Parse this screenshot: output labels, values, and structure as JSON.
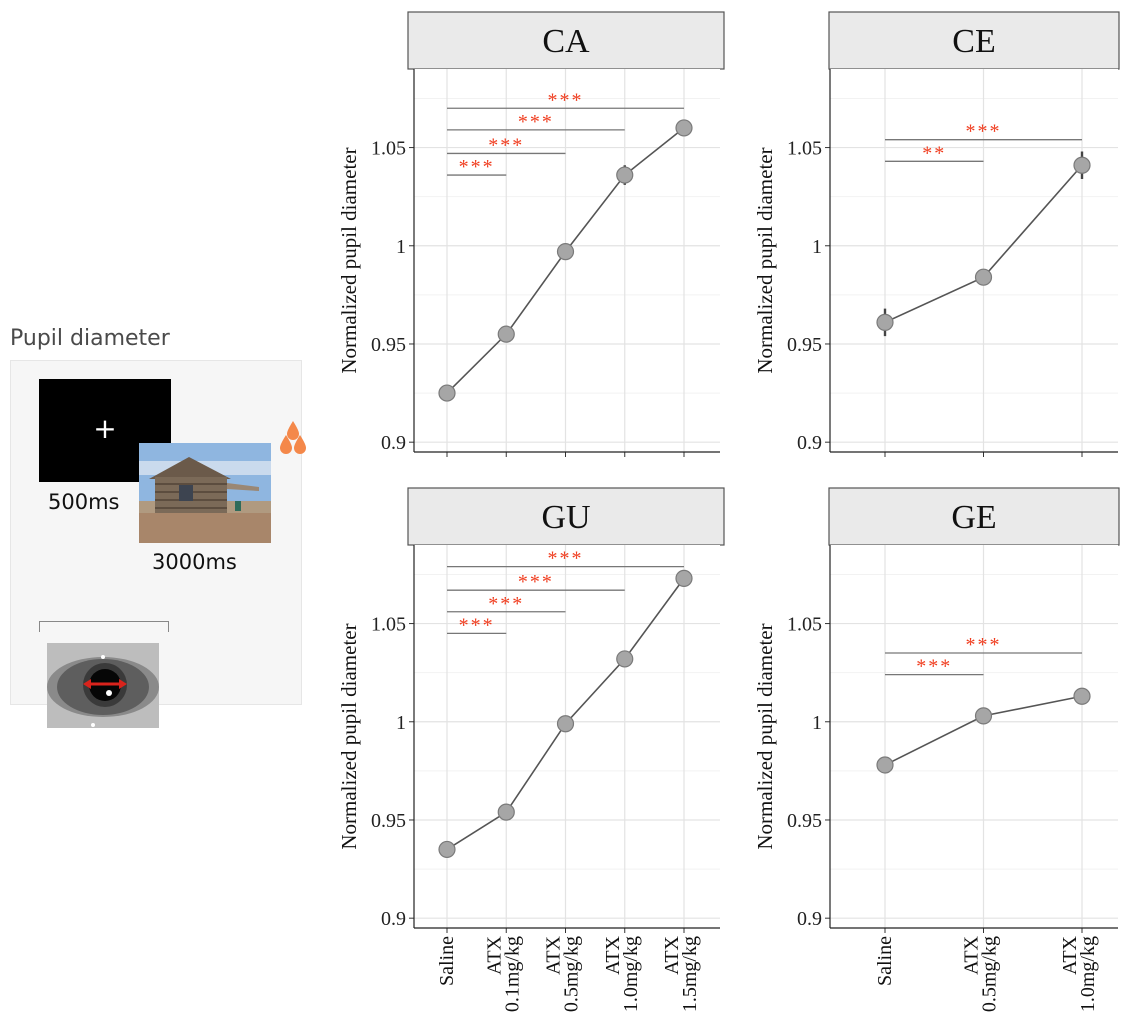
{
  "stimulus": {
    "title": "Pupil diameter",
    "fixation_duration": "500ms",
    "image_duration": "3000ms",
    "fixation_symbol": "+",
    "icons": [
      "fixation-cross-icon",
      "scene-photo-icon",
      "drop-cluster-icon",
      "eye-icon"
    ],
    "colors": {
      "accent": "#f4884a",
      "arrow": "#d9231c"
    }
  },
  "chart_data": [
    {
      "type": "line",
      "title": "CA",
      "ylabel": "Normalized pupil diameter",
      "ylim": [
        0.895,
        1.09
      ],
      "yticks": [
        "0.9",
        "0.95",
        "1",
        "1.05"
      ],
      "categories": [
        "Saline",
        "ATX 0.1mg/kg",
        "ATX 0.5mg/kg",
        "ATX 1.0mg/kg",
        "ATX 1.5mg/kg"
      ],
      "tick_labels": [],
      "values": [
        0.925,
        0.955,
        0.997,
        1.036,
        1.06
      ],
      "errors": [
        0.002,
        0.003,
        0.003,
        0.005,
        0.003
      ],
      "significance": [
        {
          "from": 0,
          "to": 1,
          "y": 1.036,
          "label": "***"
        },
        {
          "from": 0,
          "to": 2,
          "y": 1.047,
          "label": "***"
        },
        {
          "from": 0,
          "to": 3,
          "y": 1.059,
          "label": "***"
        },
        {
          "from": 0,
          "to": 4,
          "y": 1.07,
          "label": "***"
        }
      ]
    },
    {
      "type": "line",
      "title": "CE",
      "ylabel": "Normalized pupil diameter",
      "ylim": [
        0.895,
        1.09
      ],
      "yticks": [
        "0.9",
        "0.95",
        "1",
        "1.05"
      ],
      "categories": [
        "Saline",
        "ATX 0.5mg/kg",
        "ATX 1.0mg/kg"
      ],
      "tick_labels": [],
      "values": [
        0.961,
        0.984,
        1.041
      ],
      "errors": [
        0.007,
        0.003,
        0.007
      ],
      "significance": [
        {
          "from": 0,
          "to": 1,
          "y": 1.043,
          "label": "**"
        },
        {
          "from": 0,
          "to": 2,
          "y": 1.054,
          "label": "***"
        }
      ]
    },
    {
      "type": "line",
      "title": "GU",
      "ylabel": "Normalized pupil diameter",
      "ylim": [
        0.895,
        1.09
      ],
      "yticks": [
        "0.9",
        "0.95",
        "1",
        "1.05"
      ],
      "categories": [
        "Saline",
        "ATX 0.1mg/kg",
        "ATX 0.5mg/kg",
        "ATX 1.0mg/kg",
        "ATX 1.5mg/kg"
      ],
      "tick_labels": [
        {
          "lines": [
            "Saline"
          ]
        },
        {
          "lines": [
            "ATX",
            "0.1mg/kg"
          ]
        },
        {
          "lines": [
            "ATX",
            "0.5mg/kg"
          ]
        },
        {
          "lines": [
            "ATX",
            "1.0mg/kg"
          ]
        },
        {
          "lines": [
            "ATX",
            "1.5mg/kg"
          ]
        }
      ],
      "values": [
        0.935,
        0.954,
        0.999,
        1.032,
        1.073
      ],
      "errors": [
        0.002,
        0.003,
        0.003,
        0.003,
        0.003
      ],
      "significance": [
        {
          "from": 0,
          "to": 1,
          "y": 1.045,
          "label": "***"
        },
        {
          "from": 0,
          "to": 2,
          "y": 1.056,
          "label": "***"
        },
        {
          "from": 0,
          "to": 3,
          "y": 1.067,
          "label": "***"
        },
        {
          "from": 0,
          "to": 4,
          "y": 1.079,
          "label": "***"
        }
      ]
    },
    {
      "type": "line",
      "title": "GE",
      "ylabel": "Normalized pupil diameter",
      "ylim": [
        0.895,
        1.09
      ],
      "yticks": [
        "0.9",
        "0.95",
        "1",
        "1.05"
      ],
      "categories": [
        "Saline",
        "ATX 0.5mg/kg",
        "ATX 1.0mg/kg"
      ],
      "tick_labels": [
        {
          "lines": [
            "Saline"
          ]
        },
        {
          "lines": [
            "ATX",
            "0.5mg/kg"
          ]
        },
        {
          "lines": [
            "ATX",
            "1.0mg/kg"
          ]
        }
      ],
      "values": [
        0.978,
        1.003,
        1.013
      ],
      "errors": [
        0.002,
        0.002,
        0.002
      ],
      "significance": [
        {
          "from": 0,
          "to": 1,
          "y": 1.024,
          "label": "***"
        },
        {
          "from": 0,
          "to": 2,
          "y": 1.035,
          "label": "***"
        }
      ]
    }
  ]
}
